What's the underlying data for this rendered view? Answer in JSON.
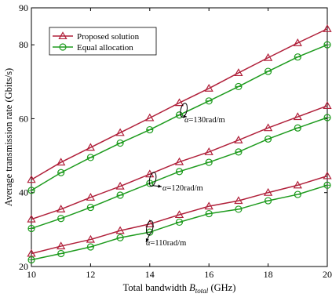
{
  "chart_data": {
    "type": "line",
    "xlabel_main": "Total bandwidth ",
    "xlabel_var": "B",
    "xlabel_sub": "total",
    "xlabel_unit": " (GHz)",
    "ylabel": "Average transmission rate (Gbits/s)",
    "xlim": [
      10,
      20
    ],
    "ylim": [
      20,
      90
    ],
    "xticks": [
      10,
      12,
      14,
      16,
      18,
      20
    ],
    "yticks": [
      20,
      40,
      60,
      80,
      90
    ],
    "grid": false,
    "legend": "top-left",
    "legend_entries": [
      {
        "name": "Proposed solution",
        "color": "#B0203A",
        "marker": "triangle"
      },
      {
        "name": "Equal allocation",
        "color": "#1E9B1E",
        "marker": "circle"
      }
    ],
    "x": [
      10,
      11,
      12,
      13,
      14,
      15,
      16,
      17,
      18,
      19,
      20
    ],
    "groups": [
      {
        "label_symbol": "α",
        "label_text": "=130rad/m",
        "proposed": [
          43.5,
          48.2,
          52.2,
          56.2,
          60.2,
          64.3,
          68.2,
          72.4,
          76.5,
          80.5,
          84.3
        ],
        "equal": [
          40.6,
          45.4,
          49.5,
          53.4,
          57.0,
          61.0,
          64.8,
          68.7,
          72.8,
          76.7,
          80.0
        ]
      },
      {
        "label_symbol": "α",
        "label_text": "=120rad/m",
        "proposed": [
          32.8,
          35.5,
          38.7,
          41.7,
          45.0,
          48.3,
          51.0,
          54.2,
          57.5,
          60.5,
          63.5
        ],
        "equal": [
          30.3,
          33.0,
          36.0,
          39.3,
          42.5,
          45.7,
          48.2,
          51.0,
          54.5,
          57.5,
          60.3
        ]
      },
      {
        "label_symbol": "α",
        "label_text": "=110rad/m",
        "proposed": [
          23.5,
          25.5,
          27.3,
          29.7,
          31.5,
          34.0,
          36.3,
          37.8,
          40.0,
          42.0,
          44.5
        ],
        "equal": [
          21.8,
          23.5,
          25.3,
          27.8,
          29.3,
          32.0,
          34.3,
          35.5,
          37.8,
          39.5,
          42.0
        ]
      }
    ]
  }
}
